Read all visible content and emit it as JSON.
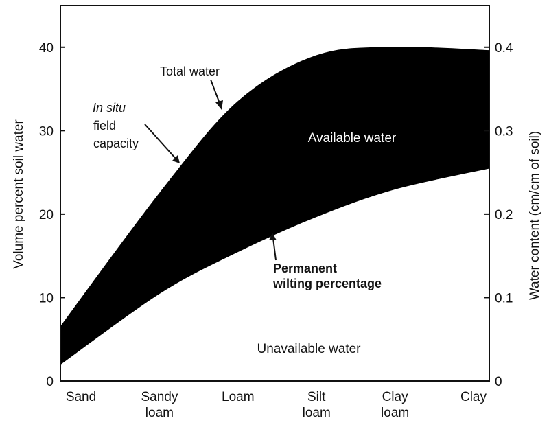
{
  "chart_data": {
    "type": "area",
    "title": "",
    "ylabel_left": "Volume percent soil water",
    "ylabel_right": "Water content (cm/cm of soil)",
    "ylim_left": [
      0,
      45
    ],
    "ylim_right": [
      0,
      0.45
    ],
    "yticks_left": [
      "0",
      "10",
      "20",
      "30",
      "40"
    ],
    "yticks_right": [
      "0",
      "0.1",
      "0.2",
      "0.3",
      "0.4"
    ],
    "categories": [
      [
        "Sand"
      ],
      [
        "Sandy",
        "loam"
      ],
      [
        "Loam"
      ],
      [
        "Silt",
        "loam"
      ],
      [
        "Clay",
        "loam"
      ],
      [
        "Clay"
      ]
    ],
    "series": [
      {
        "name": "Total water",
        "values": [
          6.5,
          22.5,
          33.5,
          39.0,
          40.0,
          39.6
        ]
      },
      {
        "name": "Permanent wilting percentage",
        "values": [
          2.0,
          10.5,
          15.5,
          19.7,
          23.0,
          25.5
        ]
      }
    ],
    "regions": {
      "available": "Available water",
      "unavailable": "Unavailable water"
    },
    "annotations": {
      "total_water": "Total water",
      "in_situ": "In situ",
      "field": "field",
      "capacity": "capacity",
      "pwp_line1": "Permanent",
      "pwp_line2": "wilting percentage"
    },
    "grid": false,
    "legend": "none"
  }
}
